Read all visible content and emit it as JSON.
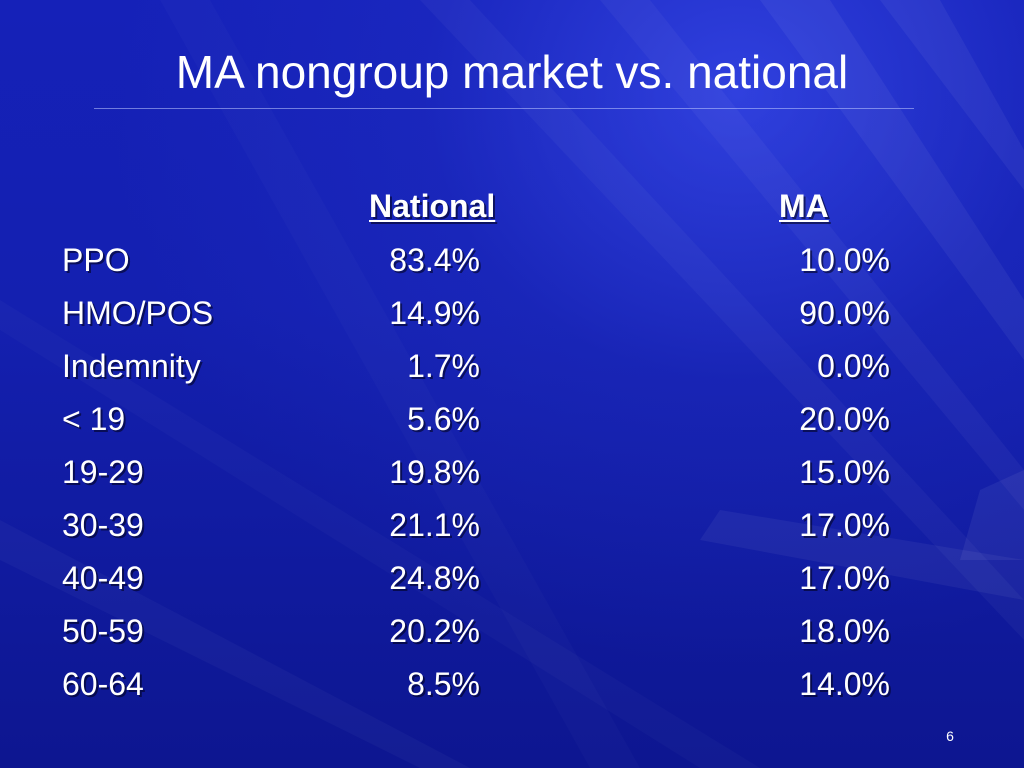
{
  "slide": {
    "title": "MA nongroup market vs. national",
    "page_number": "6",
    "colors": {
      "background": "#1420b0",
      "text": "#ffffff"
    }
  },
  "table": {
    "headers": {
      "national": "National",
      "ma": "MA"
    },
    "rows": [
      {
        "label": "PPO",
        "national": "83.4%",
        "ma": "10.0%"
      },
      {
        "label": "HMO/POS",
        "national": "14.9%",
        "ma": "90.0%"
      },
      {
        "label": "Indemnity",
        "national": "1.7%",
        "ma": "0.0%"
      },
      {
        "label": "< 19",
        "national": "5.6%",
        "ma": "20.0%"
      },
      {
        "label": "19-29",
        "national": "19.8%",
        "ma": "15.0%"
      },
      {
        "label": "30-39",
        "national": "21.1%",
        "ma": "17.0%"
      },
      {
        "label": "40-49",
        "national": "24.8%",
        "ma": "17.0%"
      },
      {
        "label": "50-59",
        "national": "20.2%",
        "ma": "18.0%"
      },
      {
        "label": "60-64",
        "national": "8.5%",
        "ma": "14.0%"
      }
    ]
  }
}
